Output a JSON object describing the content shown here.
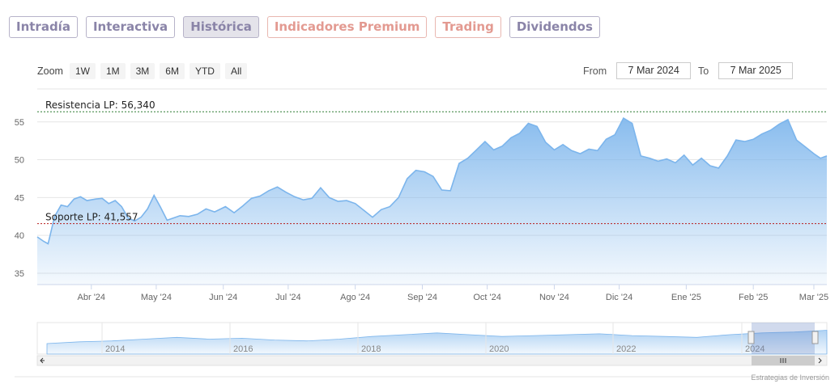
{
  "tabs": [
    {
      "label": "Intradía",
      "state": "normal"
    },
    {
      "label": "Interactiva",
      "state": "normal"
    },
    {
      "label": "Histórica",
      "state": "active"
    },
    {
      "label": "Indicadores Premium",
      "state": "premium"
    },
    {
      "label": "Trading",
      "state": "premium"
    },
    {
      "label": "Dividendos",
      "state": "normal"
    }
  ],
  "zoom": {
    "label": "Zoom",
    "buttons": [
      "1W",
      "1M",
      "3M",
      "6M",
      "YTD",
      "All"
    ]
  },
  "range": {
    "from_label": "From",
    "from_value": "7 Mar 2024",
    "to_label": "To",
    "to_value": "7 Mar 2025"
  },
  "credit": "Estrategias de Inversión",
  "colors": {
    "line": "#7cb5ec",
    "resistance": "#2e7d32",
    "support": "#b71c1c"
  },
  "chart_data": {
    "type": "area",
    "ylim": [
      33.5,
      58.5
    ],
    "y_ticks": [
      35,
      40,
      45,
      50,
      55
    ],
    "grid": true,
    "x_ticks": [
      "Abr '24",
      "May '24",
      "Jun '24",
      "Jul '24",
      "Ago '24",
      "Sep '24",
      "Oct '24",
      "Nov '24",
      "Dic '24",
      "Ene '25",
      "Feb '25",
      "Mar '25"
    ],
    "x_tick_dates": [
      "2024-04-01",
      "2024-05-01",
      "2024-06-01",
      "2024-07-01",
      "2024-08-01",
      "2024-09-01",
      "2024-10-01",
      "2024-11-01",
      "2024-12-01",
      "2025-01-01",
      "2025-02-01",
      "2025-03-01"
    ],
    "series": [
      {
        "x": [
          "2024-03-07",
          "2024-03-10",
          "2024-03-12",
          "2024-03-15",
          "2024-03-18",
          "2024-03-21",
          "2024-03-24",
          "2024-03-27",
          "2024-03-30",
          "2024-04-03",
          "2024-04-06",
          "2024-04-09",
          "2024-04-12",
          "2024-04-15",
          "2024-04-18",
          "2024-04-21",
          "2024-04-24",
          "2024-04-27",
          "2024-04-30",
          "2024-05-03",
          "2024-05-06",
          "2024-05-09",
          "2024-05-12",
          "2024-05-16",
          "2024-05-20",
          "2024-05-24",
          "2024-05-28",
          "2024-06-02",
          "2024-06-06",
          "2024-06-10",
          "2024-06-14",
          "2024-06-18",
          "2024-06-22",
          "2024-06-26",
          "2024-06-30",
          "2024-07-04",
          "2024-07-08",
          "2024-07-12",
          "2024-07-16",
          "2024-07-20",
          "2024-07-24",
          "2024-07-28",
          "2024-08-01",
          "2024-08-05",
          "2024-08-09",
          "2024-08-13",
          "2024-08-17",
          "2024-08-21",
          "2024-08-25",
          "2024-08-29",
          "2024-09-02",
          "2024-09-06",
          "2024-09-10",
          "2024-09-14",
          "2024-09-18",
          "2024-09-22",
          "2024-09-26",
          "2024-09-30",
          "2024-10-04",
          "2024-10-08",
          "2024-10-12",
          "2024-10-16",
          "2024-10-20",
          "2024-10-24",
          "2024-10-28",
          "2024-11-01",
          "2024-11-05",
          "2024-11-09",
          "2024-11-13",
          "2024-11-17",
          "2024-11-21",
          "2024-11-25",
          "2024-11-29",
          "2024-12-03",
          "2024-12-07",
          "2024-12-11",
          "2024-12-15",
          "2024-12-19",
          "2024-12-23",
          "2024-12-27",
          "2024-12-31",
          "2025-01-04",
          "2025-01-08",
          "2025-01-12",
          "2025-01-16",
          "2025-01-20",
          "2025-01-24",
          "2025-01-28",
          "2025-02-01",
          "2025-02-05",
          "2025-02-09",
          "2025-02-13",
          "2025-02-17",
          "2025-02-21",
          "2025-02-25",
          "2025-03-01",
          "2025-03-04",
          "2025-03-07"
        ],
        "y": [
          39.8,
          39.2,
          38.9,
          42.5,
          44.0,
          43.8,
          44.8,
          45.1,
          44.6,
          44.8,
          44.9,
          44.2,
          44.6,
          43.8,
          42.3,
          41.9,
          42.4,
          43.5,
          45.3,
          43.7,
          42.0,
          42.3,
          42.6,
          42.5,
          42.8,
          43.5,
          43.1,
          43.8,
          43.0,
          43.9,
          44.9,
          45.2,
          45.9,
          46.4,
          45.7,
          45.1,
          44.7,
          44.9,
          46.3,
          45.0,
          44.5,
          44.6,
          44.2,
          43.3,
          42.4,
          43.4,
          43.8,
          45.0,
          47.5,
          48.6,
          48.4,
          47.8,
          46.0,
          45.9,
          49.5,
          50.2,
          51.3,
          52.4,
          51.3,
          51.8,
          52.9,
          53.5,
          54.8,
          54.4,
          52.3,
          51.3,
          52.0,
          51.2,
          50.8,
          51.4,
          51.2,
          52.7,
          53.3,
          55.5,
          54.8,
          50.5,
          50.2,
          49.8,
          50.1,
          49.6,
          50.6,
          49.3,
          50.2,
          49.2,
          48.9,
          50.5,
          52.6,
          52.4,
          52.7,
          53.4,
          53.9,
          54.7,
          55.3,
          52.6,
          51.7,
          50.8,
          50.2,
          50.5
        ]
      }
    ],
    "annotations": [
      {
        "label": "Resistencia LP: 56,340",
        "value": 56.34
      },
      {
        "label": "Soporte LP: 41,557",
        "value": 41.557
      }
    ],
    "navigator": {
      "x_ticks": [
        "2014",
        "2016",
        "2018",
        "2020",
        "2022",
        "2024"
      ],
      "values": [
        40,
        42,
        43,
        45,
        47,
        45,
        46,
        44,
        43,
        45,
        48,
        50,
        52,
        50,
        48,
        49,
        50,
        51,
        49,
        48,
        47,
        50,
        52,
        53,
        55
      ]
    }
  }
}
